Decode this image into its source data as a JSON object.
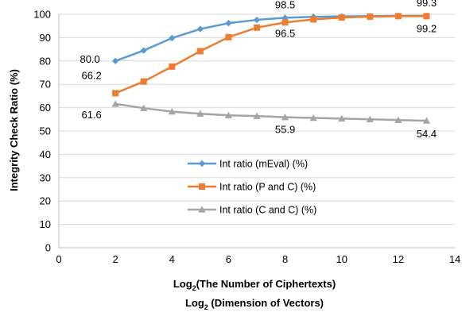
{
  "chart_data": {
    "type": "line",
    "xlabel": {
      "line1": {
        "base": "Log",
        "sub": "2",
        "rest": "(The Number of Ciphertexts)"
      },
      "line2": {
        "base": "Log",
        "sub": "2",
        "rest": " (Dimension of Vectors)"
      }
    },
    "ylabel": "Integrity Check Ratio (%)",
    "xlim": [
      0,
      14
    ],
    "ylim": [
      0,
      100
    ],
    "x_ticks": [
      0,
      2,
      4,
      6,
      8,
      10,
      12,
      14
    ],
    "y_ticks": [
      0,
      10,
      20,
      30,
      40,
      50,
      60,
      70,
      80,
      90,
      100
    ],
    "grid": "horizontal",
    "legend_position": "center-right",
    "x": [
      2,
      3,
      4,
      5,
      6,
      7,
      8,
      9,
      10,
      11,
      12,
      13
    ],
    "series": [
      {
        "name": "Int ratio (mEval) (%)",
        "color": "#5B9BD5",
        "marker": "diamond",
        "values": [
          80.0,
          84.5,
          89.8,
          93.7,
          96.2,
          97.6,
          98.5,
          98.9,
          99.1,
          99.2,
          99.3,
          99.3
        ]
      },
      {
        "name": "Int ratio (P and C) (%)",
        "color": "#ED7D31",
        "marker": "square",
        "values": [
          66.2,
          71.2,
          77.6,
          84.2,
          90.2,
          94.3,
          96.5,
          97.8,
          98.6,
          99.0,
          99.2,
          99.2
        ]
      },
      {
        "name": "Int ratio (C and C) (%)",
        "color": "#A5A5A5",
        "marker": "triangle",
        "values": [
          61.6,
          59.8,
          58.3,
          57.4,
          56.7,
          56.4,
          55.9,
          55.6,
          55.3,
          55.0,
          54.7,
          54.4
        ]
      }
    ],
    "annotations": [
      {
        "series": 0,
        "x": 2,
        "text": "80.0"
      },
      {
        "series": 0,
        "x": 8,
        "text": "98.5"
      },
      {
        "series": 0,
        "x": 13,
        "text": "99.3"
      },
      {
        "series": 1,
        "x": 2,
        "text": "66.2"
      },
      {
        "series": 1,
        "x": 8,
        "text": "96.5"
      },
      {
        "series": 1,
        "x": 13,
        "text": "99.2"
      },
      {
        "series": 2,
        "x": 2,
        "text": "61.6"
      },
      {
        "series": 2,
        "x": 8,
        "text": "55.9"
      },
      {
        "series": 2,
        "x": 13,
        "text": "54.4"
      }
    ]
  }
}
